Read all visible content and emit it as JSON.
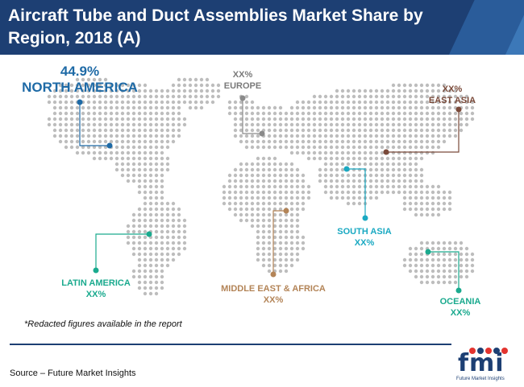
{
  "title": "Aircraft Tube and Duct Assemblies Market Share by Region, 2018 (A)",
  "regions": {
    "north_america": {
      "value": "44.9%",
      "name": "NORTH AMERICA",
      "color": "#1e6aa6"
    },
    "europe": {
      "value": "XX%",
      "name": "EUROPE",
      "color": "#8a8a8a"
    },
    "east_asia": {
      "value": "XX%",
      "name": "EAST ASIA",
      "color": "#7a4a3a"
    },
    "south_asia": {
      "name": "SOUTH ASIA",
      "value": "XX%",
      "color": "#1aa9c2"
    },
    "latin_america": {
      "name": "LATIN AMERICA",
      "value": "XX%",
      "color": "#1aaa8e"
    },
    "mea": {
      "name": "MIDDLE EAST & AFRICA",
      "value": "XX%",
      "color": "#b38457"
    },
    "oceania": {
      "name": "OCEANIA",
      "value": "XX%",
      "color": "#1aaa8e"
    }
  },
  "note": "*Redacted figures available in the report",
  "source": "Source – Future Market Insights",
  "logo": {
    "text": "fmi",
    "tagline": "Future Market Insights"
  },
  "colors": {
    "header": "#1d3f73",
    "dots": "#bdbdbd"
  }
}
